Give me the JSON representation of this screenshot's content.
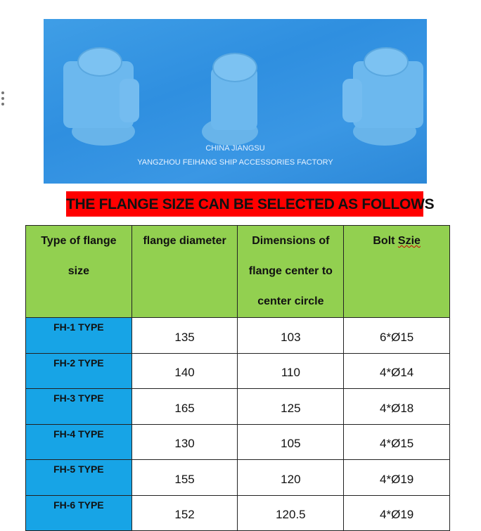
{
  "photo": {
    "line1": "CHINA JIANGSU",
    "line2": "YANGZHOU FEIHANG SHIP ACCESSORIES FACTORY"
  },
  "banner": "THE FLANGE SIZE CAN BE SELECTED AS FOLLOWS",
  "table": {
    "headers": {
      "type_l1": "Type of flange",
      "type_l2": "size",
      "diameter": "flange diameter",
      "dim_l1": "Dimensions of",
      "dim_l2": "flange center to",
      "dim_l3": "center circle",
      "bolt_a": "Bolt ",
      "bolt_b": "Szie"
    },
    "rows": [
      {
        "type": "FH-1 TYPE",
        "diameter": "135",
        "center": "103",
        "bolt": "6*Ø15"
      },
      {
        "type": "FH-2 TYPE",
        "diameter": "140",
        "center": "110",
        "bolt": "4*Ø14"
      },
      {
        "type": "FH-3 TYPE",
        "diameter": "165",
        "center": "125",
        "bolt": "4*Ø18"
      },
      {
        "type": "FH-4 TYPE",
        "diameter": "130",
        "center": "105",
        "bolt": "4*Ø15"
      },
      {
        "type": "FH-5 TYPE",
        "diameter": "155",
        "center": "120",
        "bolt": "4*Ø19"
      },
      {
        "type": "FH-6 TYPE",
        "diameter": "152",
        "center": "120.5",
        "bolt": "4*Ø19"
      }
    ]
  },
  "colors": {
    "header": "#92d050",
    "type_cell": "#17a4e6",
    "banner": "#ff0000"
  }
}
